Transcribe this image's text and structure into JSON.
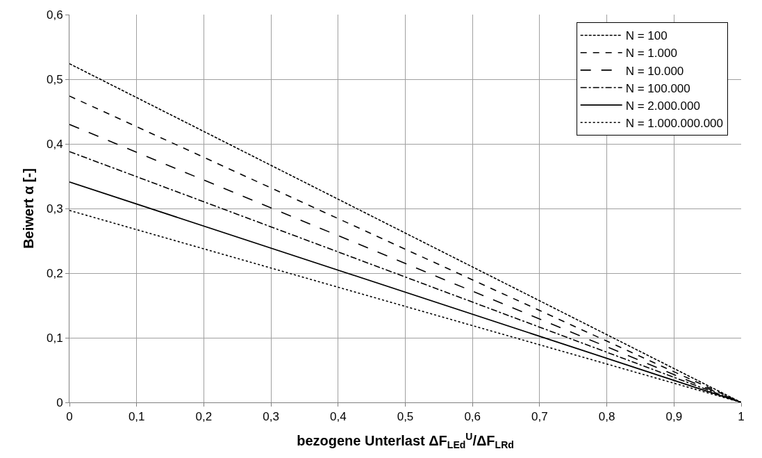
{
  "chart_data": {
    "type": "line",
    "xlabel": "bezogene Unterlast ΔF$_{LEd}$$^{U}$/ΔF$_{LRd}$",
    "ylabel": "Beiwert α [-]",
    "x": [
      0,
      1
    ],
    "series": [
      {
        "name": "N = 100",
        "color": "#000000",
        "line_style": "shortdashed",
        "values": [
          0.524,
          0
        ]
      },
      {
        "name": "N = 1.000",
        "color": "#000000",
        "line_style": "dashed",
        "values": [
          0.474,
          0
        ]
      },
      {
        "name": "N = 10.000",
        "color": "#000000",
        "line_style": "longdashed",
        "values": [
          0.43,
          0
        ]
      },
      {
        "name": "N = 100.000",
        "color": "#000000",
        "line_style": "dashdot",
        "values": [
          0.388,
          0
        ]
      },
      {
        "name": "N = 2.000.000",
        "color": "#000000",
        "line_style": "solid",
        "values": [
          0.341,
          0
        ]
      },
      {
        "name": "N = 1.000.000.000",
        "color": "#000000",
        "line_style": "dotted",
        "values": [
          0.297,
          0
        ]
      }
    ],
    "xlim": [
      0,
      1
    ],
    "xticks": [
      0,
      {
        "value": 0.1,
        "label": "0,1"
      },
      {
        "value": 0.2,
        "label": "0,2"
      },
      {
        "value": 0.3,
        "label": "0,3"
      },
      {
        "value": 0.4,
        "label": "0,4"
      },
      {
        "value": 0.5,
        "label": "0,5"
      },
      {
        "value": 0.6,
        "label": "0,6"
      },
      {
        "value": 0.7,
        "label": "0,7"
      },
      {
        "value": 0.8,
        "label": "0,8"
      },
      {
        "value": 0.9,
        "label": "0,9"
      },
      1
    ],
    "ylim": [
      0,
      0.6
    ],
    "yticks": [
      0,
      {
        "value": 0.1,
        "label": "0,1"
      },
      {
        "value": 0.2,
        "label": "0,2"
      },
      {
        "value": 0.3,
        "label": "0,3"
      },
      {
        "value": 0.4,
        "label": "0,4"
      },
      {
        "value": 0.5,
        "label": "0,5"
      },
      {
        "value": 0.6,
        "label": "0,6"
      }
    ],
    "grid": true,
    "legend": "top right",
    "marker": "none"
  }
}
